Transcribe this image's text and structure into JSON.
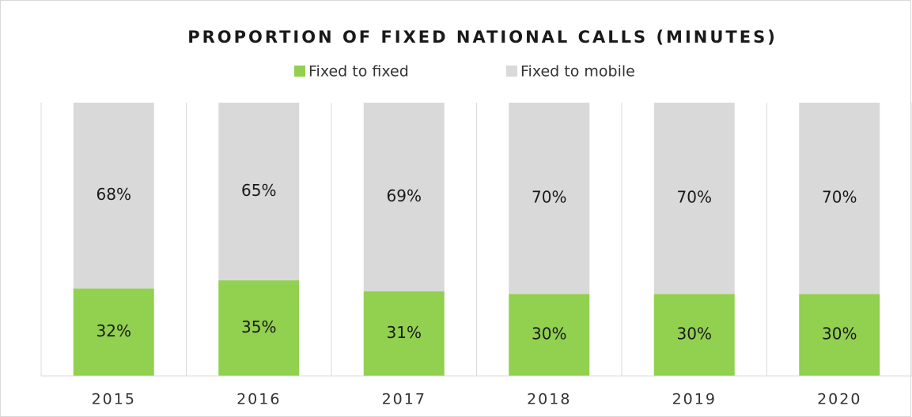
{
  "chart_data": {
    "type": "stacked_bar",
    "title": "PROPORTION OF FIXED NATIONAL CALLS (MINUTES)",
    "categories": [
      "2015",
      "2016",
      "2017",
      "2018",
      "2019",
      "2020"
    ],
    "series": [
      {
        "name": "Fixed to fixed",
        "color": "#92d050",
        "values": [
          32,
          35,
          31,
          30,
          30,
          30
        ],
        "value_labels": [
          "32%",
          "35%",
          "31%",
          "30%",
          "30%",
          "30%"
        ]
      },
      {
        "name": "Fixed to mobile",
        "color": "#d9d9d9",
        "values": [
          68,
          65,
          69,
          70,
          70,
          70
        ],
        "value_labels": [
          "68%",
          "65%",
          "69%",
          "70%",
          "70%",
          "70%"
        ]
      }
    ]
  }
}
